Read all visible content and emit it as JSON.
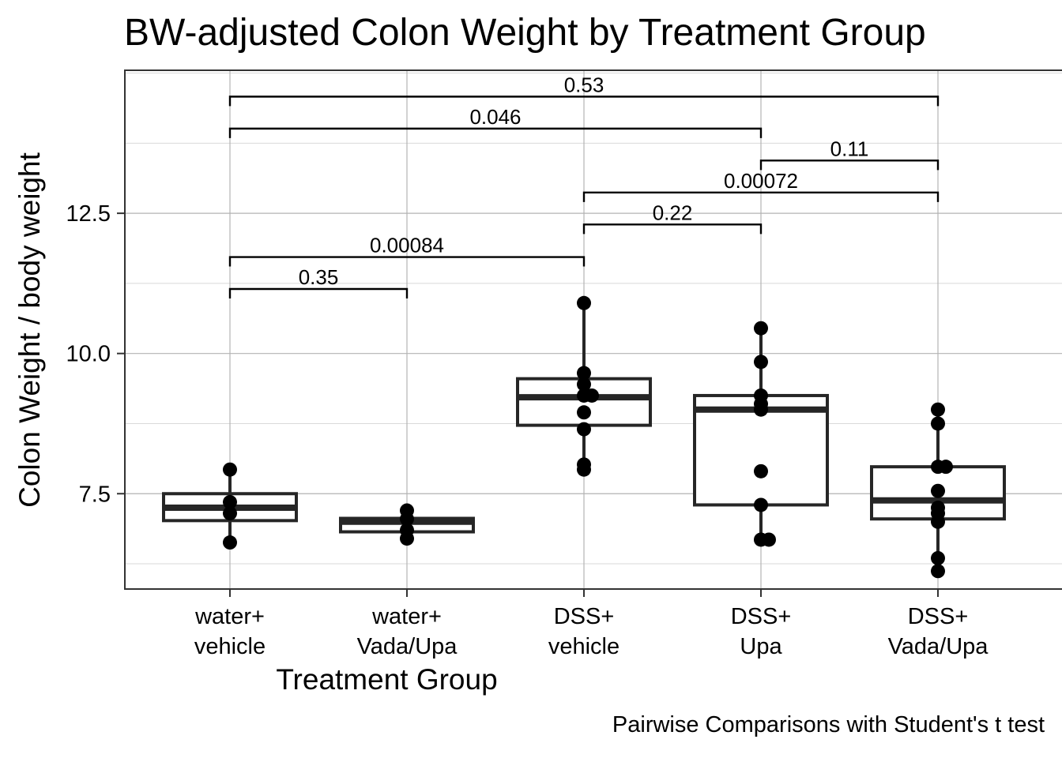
{
  "chart_data": {
    "type": "box",
    "title": "BW-adjusted Colon Weight by Treatment Group",
    "xlabel": "Treatment Group",
    "ylabel": "Colon Weight / body weight",
    "caption": "Pairwise Comparisons with Student's t test",
    "ylim": [
      5.8,
      15.05
    ],
    "yticks": [
      7.5,
      10.0,
      12.5
    ],
    "ytick_labels": [
      "7.5",
      "10.0",
      "12.5"
    ],
    "grid": true,
    "categories": [
      [
        "water+",
        "vehicle"
      ],
      [
        "water+",
        "Vada/Upa"
      ],
      [
        "DSS+",
        "vehicle"
      ],
      [
        "DSS+",
        "Upa"
      ],
      [
        "DSS+",
        "Vada/Upa"
      ]
    ],
    "boxes": [
      {
        "q1": 7.02,
        "median": 7.25,
        "q3": 7.5,
        "whisker_low": 6.63,
        "whisker_high": 7.93
      },
      {
        "q1": 6.82,
        "median": 7.0,
        "q3": 7.06,
        "whisker_low": 6.7,
        "whisker_high": 7.2
      },
      {
        "q1": 8.72,
        "median": 9.22,
        "q3": 9.55,
        "whisker_low": 7.93,
        "whisker_high": 10.9
      },
      {
        "q1": 7.3,
        "median": 9.0,
        "q3": 9.25,
        "whisker_low": 6.68,
        "whisker_high": 10.45
      },
      {
        "q1": 7.05,
        "median": 7.38,
        "q3": 7.98,
        "whisker_low": 6.12,
        "whisker_high": 9.0
      }
    ],
    "points": [
      [
        7.93,
        7.35,
        7.15,
        6.63
      ],
      [
        7.2,
        7.05,
        6.85,
        6.7
      ],
      [
        10.9,
        9.65,
        9.45,
        9.25,
        9.25,
        8.95,
        8.65,
        8.02,
        7.93
      ],
      [
        10.45,
        9.85,
        9.25,
        9.1,
        9.0,
        7.9,
        7.3,
        6.68,
        6.68
      ],
      [
        9.0,
        8.75,
        7.98,
        7.98,
        7.55,
        7.25,
        7.15,
        7.0,
        6.35,
        6.12
      ]
    ],
    "comparisons": [
      {
        "from": 1,
        "to": 2,
        "label": "0.35",
        "y": 11.15
      },
      {
        "from": 1,
        "to": 3,
        "label": "0.00084",
        "y": 11.72
      },
      {
        "from": 3,
        "to": 4,
        "label": "0.22",
        "y": 12.3
      },
      {
        "from": 3,
        "to": 5,
        "label": "0.00072",
        "y": 12.87
      },
      {
        "from": 4,
        "to": 5,
        "label": "0.11",
        "y": 13.44
      },
      {
        "from": 1,
        "to": 4,
        "label": "0.046",
        "y": 14.01
      },
      {
        "from": 1,
        "to": 5,
        "label": "0.53",
        "y": 14.58
      }
    ],
    "colors": {
      "box": "#262626",
      "point": "#000000",
      "grid": "#d9d9d9",
      "grid_major": "#b3b3b3",
      "frame": "#333333"
    }
  }
}
